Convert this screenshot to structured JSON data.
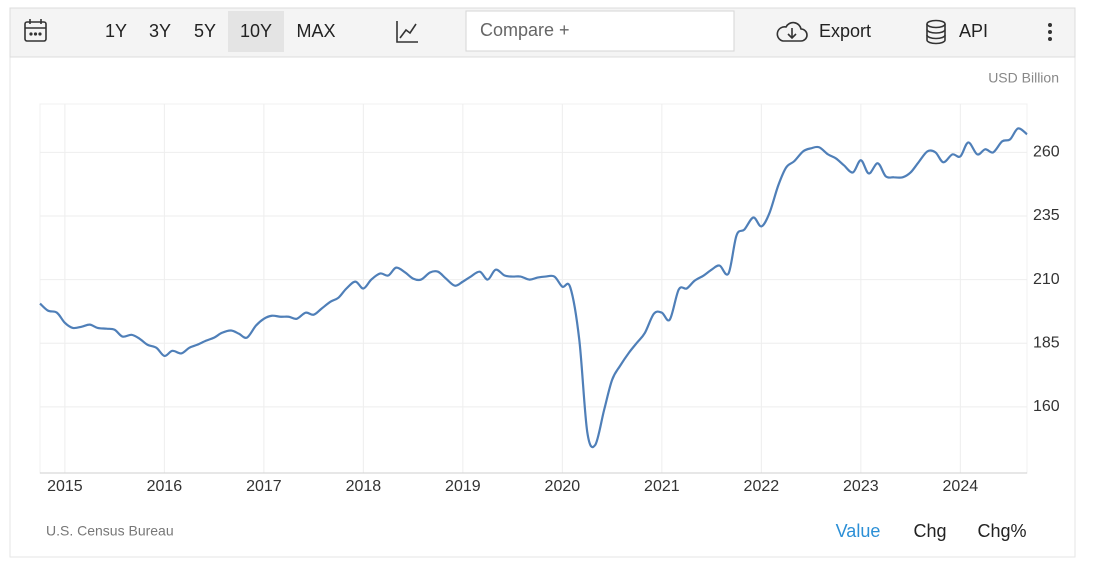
{
  "toolbar": {
    "ranges": [
      "1Y",
      "3Y",
      "5Y",
      "10Y",
      "MAX"
    ],
    "selected_range": 3,
    "compare": "Compare +",
    "export": "Export",
    "api": "API"
  },
  "chart_data": {
    "type": "line",
    "unit": "USD Billion",
    "source": "U.S. Census Bureau",
    "views": [
      "Value",
      "Chg",
      "Chg%"
    ],
    "active_view": 0,
    "x": [
      2014.75,
      2014.83,
      2014.92,
      2015,
      2015.08,
      2015.17,
      2015.25,
      2015.33,
      2015.42,
      2015.5,
      2015.58,
      2015.67,
      2015.75,
      2015.83,
      2015.92,
      2016,
      2016.08,
      2016.17,
      2016.25,
      2016.33,
      2016.42,
      2016.5,
      2016.58,
      2016.67,
      2016.75,
      2016.83,
      2016.92,
      2017,
      2017.08,
      2017.17,
      2017.25,
      2017.33,
      2017.42,
      2017.5,
      2017.58,
      2017.67,
      2017.75,
      2017.83,
      2017.92,
      2018,
      2018.08,
      2018.17,
      2018.25,
      2018.33,
      2018.42,
      2018.5,
      2018.58,
      2018.67,
      2018.75,
      2018.83,
      2018.92,
      2019,
      2019.08,
      2019.17,
      2019.25,
      2019.33,
      2019.42,
      2019.5,
      2019.58,
      2019.67,
      2019.75,
      2019.83,
      2019.92,
      2020,
      2020.08,
      2020.17,
      2020.25,
      2020.33,
      2020.42,
      2020.5,
      2020.58,
      2020.67,
      2020.75,
      2020.83,
      2020.92,
      2021,
      2021.08,
      2021.17,
      2021.25,
      2021.33,
      2021.42,
      2021.5,
      2021.58,
      2021.67,
      2021.75,
      2021.83,
      2021.92,
      2022,
      2022.08,
      2022.17,
      2022.25,
      2022.33,
      2022.42,
      2022.5,
      2022.58,
      2022.67,
      2022.75,
      2022.83,
      2022.92,
      2023,
      2023.08,
      2023.17,
      2023.25,
      2023.33,
      2023.42,
      2023.5,
      2023.58,
      2023.67,
      2023.75,
      2023.83,
      2023.92,
      2024,
      2024.08,
      2024.17,
      2024.25,
      2024.33,
      2024.42,
      2024.5,
      2024.58,
      2024.67
    ],
    "series": [
      {
        "color": "#4f7fb8",
        "values": [
          200.6,
          197.8,
          197,
          193,
          191,
          191.5,
          192.3,
          191,
          190.7,
          190.3,
          187.6,
          188.3,
          186.8,
          184.4,
          183.2,
          180,
          182,
          181,
          183.2,
          184.4,
          186,
          187.2,
          189.1,
          190,
          188.7,
          187.2,
          191.9,
          194.6,
          195.8,
          195.4,
          195.4,
          194.6,
          197,
          196.2,
          198.6,
          201.3,
          202.9,
          206.5,
          209.2,
          206.5,
          210,
          212.4,
          211.6,
          214.7,
          212.8,
          210.4,
          210,
          212.8,
          213.1,
          210.4,
          207.6,
          209.2,
          211.2,
          213.1,
          210,
          213.9,
          211.6,
          211.2,
          211.2,
          210,
          210.8,
          211.2,
          211.2,
          207.2,
          206.9,
          186.4,
          150.2,
          145,
          158.8,
          170.6,
          176.1,
          181.3,
          185.2,
          189.1,
          196.6,
          197,
          194.3,
          206.1,
          206.5,
          209.6,
          211.6,
          213.9,
          215.5,
          212.4,
          227.3,
          229.7,
          234.4,
          230.9,
          236,
          247,
          254.1,
          256.5,
          260.4,
          261.6,
          262,
          259.2,
          257.6,
          254.9,
          252.1,
          256.9,
          251.7,
          255.7,
          250.6,
          250.2,
          250.2,
          252.1,
          256.1,
          260.4,
          260,
          256.1,
          259.2,
          258.4,
          263.9,
          259.2,
          261.2,
          260,
          264.3,
          265.1,
          269.4,
          267.1
        ]
      }
    ],
    "xlim": [
      2014.75,
      2024.67
    ],
    "xticks": [
      2015,
      2016,
      2017,
      2018,
      2019,
      2020,
      2021,
      2022,
      2023,
      2024
    ],
    "ylim": [
      134,
      279
    ],
    "yticks": [
      160,
      185,
      210,
      235,
      260
    ],
    "grid": true
  }
}
